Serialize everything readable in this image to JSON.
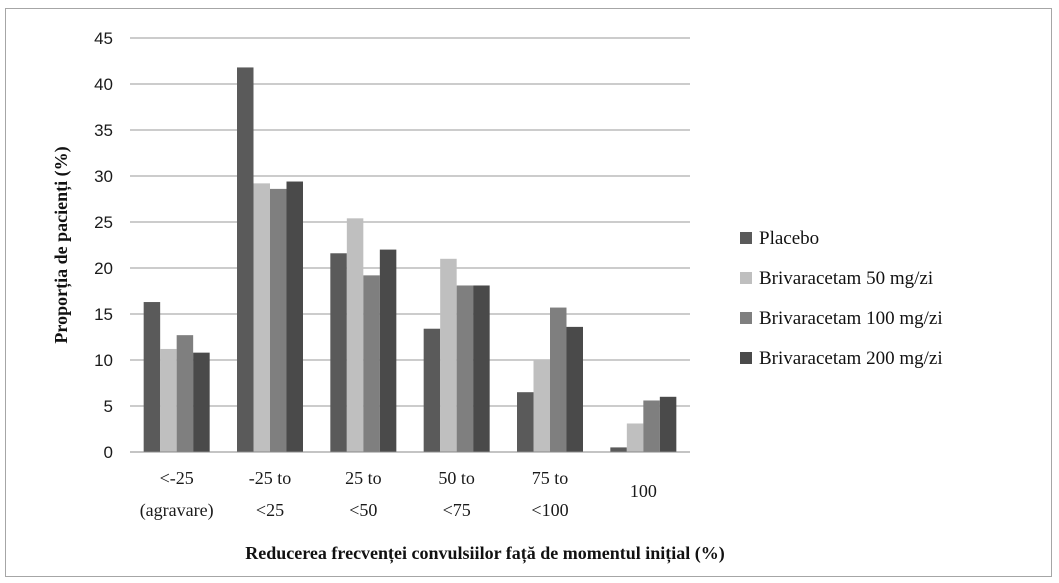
{
  "chart_data": {
    "type": "bar",
    "xlabel": "Reducerea frecvenței convulsiilor față de momentul inițial (%)",
    "ylabel": "Proporția de pacienți (%)",
    "ylim": [
      0,
      45
    ],
    "yticks": [
      0,
      5,
      10,
      15,
      20,
      25,
      30,
      35,
      40,
      45
    ],
    "grid": true,
    "legend_position": "right",
    "categories": [
      [
        "<-25",
        "(agravare)"
      ],
      [
        "-25 to",
        "<25"
      ],
      [
        "25 to",
        "<50"
      ],
      [
        "50 to",
        "<75"
      ],
      [
        "75 to",
        "<100"
      ],
      [
        "100"
      ]
    ],
    "series": [
      {
        "name": "Placebo",
        "color": "#5a5a5a",
        "values": [
          16.3,
          41.8,
          21.6,
          13.4,
          6.5,
          0.5
        ]
      },
      {
        "name": "Brivaracetam 50 mg/zi",
        "color": "#bfbfbf",
        "values": [
          11.2,
          29.2,
          25.4,
          21.0,
          10.0,
          3.1
        ]
      },
      {
        "name": "Brivaracetam 100 mg/zi",
        "color": "#7f7f7f",
        "values": [
          12.7,
          28.6,
          19.2,
          18.1,
          15.7,
          5.6
        ]
      },
      {
        "name": "Brivaracetam 200 mg/zi",
        "color": "#4a4a4a",
        "values": [
          10.8,
          29.4,
          22.0,
          18.1,
          13.6,
          6.0
        ]
      }
    ]
  }
}
